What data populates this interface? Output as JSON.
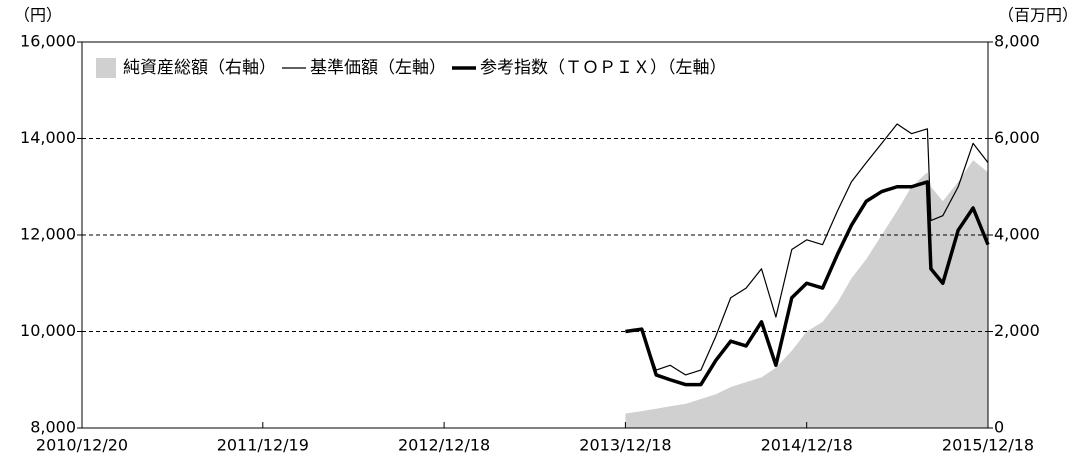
{
  "chart_data": {
    "type": "line",
    "y_unit_label": "（円）",
    "y2_unit_label": "（百万円）",
    "x": [
      "2013/12/18",
      "2014/01/20",
      "2014/02/18",
      "2014/03/18",
      "2014/04/18",
      "2014/05/19",
      "2014/06/18",
      "2014/07/18",
      "2014/08/18",
      "2014/09/18",
      "2014/10/17",
      "2014/11/18",
      "2014/12/18",
      "2015/01/19",
      "2015/02/18",
      "2015/03/18",
      "2015/04/17",
      "2015/05/18",
      "2015/06/18",
      "2015/07/17",
      "2015/08/18",
      "2015/08/25",
      "2015/09/18",
      "2015/10/19",
      "2015/11/18",
      "2015/12/18"
    ],
    "series": [
      {
        "name": "純資産総額（右軸）",
        "kind": "area",
        "axis": "y2",
        "color": "#d0d0d0",
        "values": [
          300,
          350,
          400,
          450,
          500,
          600,
          700,
          850,
          950,
          1050,
          1250,
          1600,
          2000,
          2200,
          2600,
          3100,
          3500,
          4000,
          4500,
          5000,
          5300,
          5000,
          4700,
          5100,
          5550,
          5300
        ]
      },
      {
        "name": "基準価額（左軸）",
        "kind": "line",
        "width": 1.2,
        "color": "#000000",
        "values": [
          10000,
          10050,
          9200,
          9300,
          9100,
          9200,
          9900,
          10700,
          10900,
          11300,
          10300,
          11700,
          11900,
          11800,
          12500,
          13100,
          13500,
          13900,
          14300,
          14100,
          14200,
          12300,
          12400,
          13000,
          13900,
          13500
        ]
      },
      {
        "name": "参考指数（ＴＯＰＩＸ）（左軸）",
        "kind": "line",
        "width": 3.5,
        "color": "#000000",
        "values": [
          10000,
          10050,
          9100,
          9000,
          8900,
          8900,
          9400,
          9800,
          9700,
          10200,
          9300,
          10700,
          11000,
          10900,
          11600,
          12200,
          12700,
          12900,
          13000,
          13000,
          13100,
          11300,
          11000,
          12100,
          12560,
          11800
        ]
      }
    ],
    "xlim": [
      "2010/12/20",
      "2015/12/18"
    ],
    "xticks": [
      "2010/12/20",
      "2011/12/19",
      "2012/12/18",
      "2013/12/18",
      "2014/12/18",
      "2015/12/18"
    ],
    "ylim": [
      8000,
      16000
    ],
    "yticks": [
      {
        "value": 8000,
        "label": "8,000"
      },
      {
        "value": 10000,
        "label": "10,000"
      },
      {
        "value": 12000,
        "label": "12,000"
      },
      {
        "value": 14000,
        "label": "14,000"
      },
      {
        "value": 16000,
        "label": "16,000"
      }
    ],
    "y2lim": [
      0,
      8000
    ],
    "y2ticks": [
      0,
      {
        "value": 2000,
        "label": "2,000"
      },
      {
        "value": 4000,
        "label": "4,000"
      },
      {
        "value": 6000,
        "label": "6,000"
      },
      {
        "value": 8000,
        "label": "8,000"
      }
    ],
    "grid": true
  }
}
